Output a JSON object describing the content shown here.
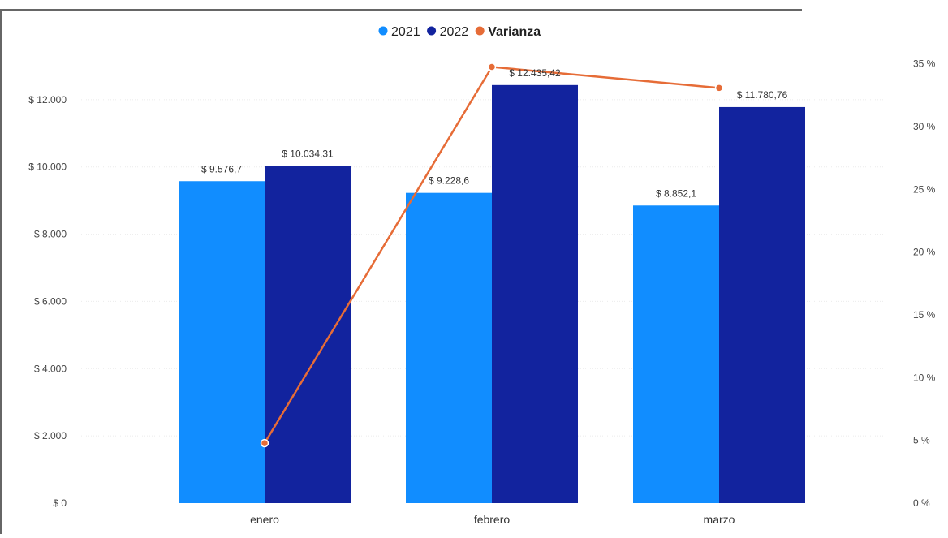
{
  "chart_data": {
    "type": "bar",
    "title": "",
    "xlabel": "",
    "ylabel": "",
    "categories": [
      "enero",
      "febrero",
      "marzo"
    ],
    "series": [
      {
        "name": "2021",
        "kind": "bar",
        "color": "#118DFF",
        "values": [
          9576.7,
          9228.6,
          8852.1
        ],
        "labels": [
          "$ 9.576,7",
          "$ 9.228,6",
          "$ 8.852,1"
        ]
      },
      {
        "name": "2022",
        "kind": "bar",
        "color": "#12239E",
        "values": [
          10034.31,
          12435.42,
          11780.76
        ],
        "labels": [
          "$ 10.034,31",
          "$ 12.435,42",
          "$ 11.780,76"
        ]
      },
      {
        "name": "Varianza",
        "kind": "line",
        "axis": "right",
        "color": "#E66C37",
        "values": [
          0.0478,
          0.3475,
          0.3308
        ]
      }
    ],
    "y_left": {
      "lim": [
        0,
        14000
      ],
      "ticks": [
        0,
        2000,
        4000,
        6000,
        8000,
        10000,
        12000
      ],
      "tick_labels": [
        "$ 0",
        "$ 2.000",
        "$ 4.000",
        "$ 6.000",
        "$ 8.000",
        "$ 10.000",
        "$ 12.000"
      ]
    },
    "y_right": {
      "lim": [
        0,
        0.375
      ],
      "ticks": [
        0,
        0.05,
        0.1,
        0.15,
        0.2,
        0.25,
        0.3,
        0.35
      ],
      "tick_labels": [
        "0 %",
        "5 %",
        "10 %",
        "15 %",
        "20 %",
        "25 %",
        "30 %",
        "35 %"
      ]
    },
    "legend": {
      "position": "top-center"
    },
    "grid": true
  }
}
